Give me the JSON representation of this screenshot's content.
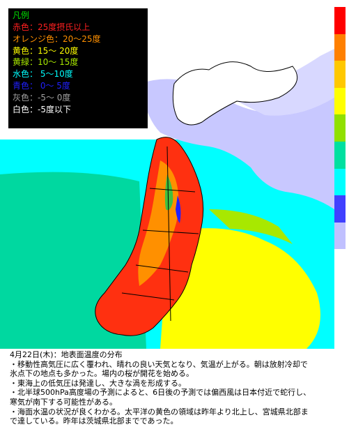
{
  "legend": {
    "title": "凡例",
    "items": [
      {
        "label": "赤色：25度摂氏以上",
        "color": "#ff2020"
      },
      {
        "label": "オレンジ色：20～25度",
        "color": "#ff9000"
      },
      {
        "label": "黄色：15～ 20度",
        "color": "#ffff00"
      },
      {
        "label": "黄緑：10～ 15度",
        "color": "#a8e800"
      },
      {
        "label": "水色： 5～10度",
        "color": "#00ffff"
      },
      {
        "label": "青色： 0～ 5度",
        "color": "#2020ff"
      },
      {
        "label": "灰色：-5～ 0度",
        "color": "#a0a0a0"
      },
      {
        "label": "白色：-5度以下",
        "color": "#ffffff"
      }
    ]
  },
  "colorbar": [
    "#ff0000",
    "#ff8000",
    "#ffc800",
    "#ffff00",
    "#90e000",
    "#00e0a0",
    "#00ffff",
    "#4040ff",
    "#c0c0ff"
  ],
  "map": {
    "colors": {
      "sea_cyan": "#00ffff",
      "sea_teal": "#00d8a0",
      "sea_yellow": "#ffff00",
      "sea_green": "#a8e800",
      "land_red": "#ff3010",
      "land_orange": "#ff9000",
      "land_green": "#40c040",
      "water_blue": "#2020ff",
      "cloud_lavender": "#c8c8ff",
      "boundary": "#000000"
    }
  },
  "caption": {
    "lines": [
      "4月22日(木)：地表面温度の分布",
      "・移動性高気圧に広く覆われ、晴れの良い天気となり、気温が上がる。朝は放射冷却で",
      "氷点下の地点も多かった。場内の桜が開花を始める。",
      "・東海上の低気圧は発達し、大きな渦を形成する。",
      "・北半球500hPa高度場の予測によると、6日後の予測では偏西風は日本付近で蛇行し、",
      "寒気が南下する可能性がある。",
      "・海面水温の状況が良くわかる。太平洋の黄色の領域は昨年より北上し、宮城県北部ま",
      "で達している。昨年は茨城県北部までであった。"
    ]
  }
}
